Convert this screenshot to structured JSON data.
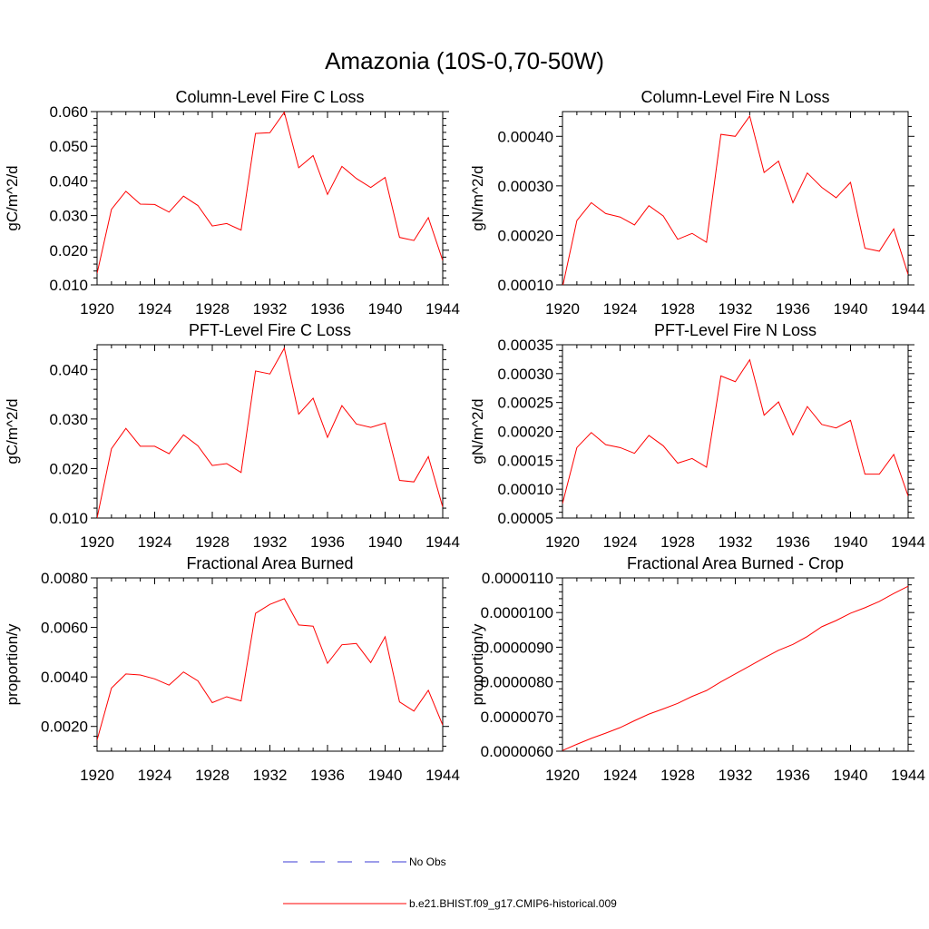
{
  "figure_title": "Amazonia (10S-0,70-50W)",
  "colors": {
    "model": "#ff0000",
    "obs": "#3b3bd6",
    "axis": "#000000",
    "background": "#ffffff"
  },
  "legend": {
    "obs_label": "No Obs",
    "model_label": "b.e21.BHIST.f09_g17.CMIP6-historical.009"
  },
  "chart_data": [
    {
      "type": "line",
      "title": "Column-Level Fire C Loss",
      "xlabel": "",
      "ylabel": "gC/m^2/d",
      "xlim": [
        1920,
        1944
      ],
      "ylim": [
        0.01,
        0.06
      ],
      "xticks": [
        1920,
        1924,
        1928,
        1932,
        1936,
        1940,
        1944
      ],
      "xtick_labels": [
        "1920",
        "1924",
        "1928",
        "1932",
        "1936",
        "1940",
        "1944"
      ],
      "yticks": [
        0.01,
        0.02,
        0.03,
        0.04,
        0.05,
        0.06
      ],
      "ytick_labels": [
        "0.010",
        "0.020",
        "0.030",
        "0.040",
        "0.050",
        "0.060"
      ],
      "x": [
        1920,
        1921,
        1922,
        1923,
        1924,
        1925,
        1926,
        1927,
        1928,
        1929,
        1930,
        1931,
        1932,
        1933,
        1934,
        1935,
        1936,
        1937,
        1938,
        1939,
        1940,
        1941,
        1942,
        1943,
        1944
      ],
      "series": [
        {
          "name": "b.e21.BHIST.f09_g17.CMIP6-historical.009",
          "values": [
            0.0133,
            0.0318,
            0.037,
            0.0333,
            0.0332,
            0.031,
            0.0356,
            0.0329,
            0.027,
            0.0277,
            0.0258,
            0.0537,
            0.0539,
            0.0598,
            0.0438,
            0.0473,
            0.0361,
            0.0442,
            0.0407,
            0.0381,
            0.041,
            0.0237,
            0.0228,
            0.0294,
            0.017
          ]
        }
      ]
    },
    {
      "type": "line",
      "title": "Column-Level Fire N Loss",
      "xlabel": "",
      "ylabel": "gN/m^2/d",
      "xlim": [
        1920,
        1944
      ],
      "ylim": [
        0.0001,
        0.00045
      ],
      "xticks": [
        1920,
        1924,
        1928,
        1932,
        1936,
        1940,
        1944
      ],
      "xtick_labels": [
        "1920",
        "1924",
        "1928",
        "1932",
        "1936",
        "1940",
        "1944"
      ],
      "yticks": [
        0.0001,
        0.0002,
        0.0003,
        0.0004
      ],
      "ytick_labels": [
        "0.00010",
        "0.00020",
        "0.00030",
        "0.00040"
      ],
      "x": [
        1920,
        1921,
        1922,
        1923,
        1924,
        1925,
        1926,
        1927,
        1928,
        1929,
        1930,
        1931,
        1932,
        1933,
        1934,
        1935,
        1936,
        1937,
        1938,
        1939,
        1940,
        1941,
        1942,
        1943,
        1944
      ],
      "series": [
        {
          "name": "b.e21.BHIST.f09_g17.CMIP6-historical.009",
          "values": [
            9.5e-05,
            0.00023,
            0.000266,
            0.000244,
            0.000237,
            0.000221,
            0.00026,
            0.000239,
            0.000192,
            0.000204,
            0.000186,
            0.000404,
            0.0004,
            0.000441,
            0.000327,
            0.00035,
            0.000266,
            0.000326,
            0.000297,
            0.000276,
            0.000307,
            0.000174,
            0.000168,
            0.000213,
            0.000121
          ]
        }
      ]
    },
    {
      "type": "line",
      "title": "PFT-Level Fire C Loss",
      "xlabel": "",
      "ylabel": "gC/m^2/d",
      "xlim": [
        1920,
        1944
      ],
      "ylim": [
        0.01,
        0.045
      ],
      "xticks": [
        1920,
        1924,
        1928,
        1932,
        1936,
        1940,
        1944
      ],
      "xtick_labels": [
        "1920",
        "1924",
        "1928",
        "1932",
        "1936",
        "1940",
        "1944"
      ],
      "yticks": [
        0.01,
        0.02,
        0.03,
        0.04
      ],
      "ytick_labels": [
        "0.010",
        "0.020",
        "0.030",
        "0.040"
      ],
      "x": [
        1920,
        1921,
        1922,
        1923,
        1924,
        1925,
        1926,
        1927,
        1928,
        1929,
        1930,
        1931,
        1932,
        1933,
        1934,
        1935,
        1936,
        1937,
        1938,
        1939,
        1940,
        1941,
        1942,
        1943,
        1944
      ],
      "series": [
        {
          "name": "b.e21.BHIST.f09_g17.CMIP6-historical.009",
          "values": [
            0.01,
            0.024,
            0.0281,
            0.0245,
            0.0245,
            0.023,
            0.0268,
            0.0246,
            0.0206,
            0.021,
            0.0192,
            0.0397,
            0.0391,
            0.0443,
            0.031,
            0.0342,
            0.0263,
            0.0327,
            0.029,
            0.0283,
            0.0292,
            0.0176,
            0.0173,
            0.0224,
            0.0122
          ]
        }
      ]
    },
    {
      "type": "line",
      "title": "PFT-Level Fire N Loss",
      "xlabel": "",
      "ylabel": "gN/m^2/d",
      "xlim": [
        1920,
        1944
      ],
      "ylim": [
        5e-05,
        0.00035
      ],
      "xticks": [
        1920,
        1924,
        1928,
        1932,
        1936,
        1940,
        1944
      ],
      "xtick_labels": [
        "1920",
        "1924",
        "1928",
        "1932",
        "1936",
        "1940",
        "1944"
      ],
      "yticks": [
        5e-05,
        0.0001,
        0.00015,
        0.0002,
        0.00025,
        0.0003,
        0.00035
      ],
      "ytick_labels": [
        "0.00005",
        "0.00010",
        "0.00015",
        "0.00020",
        "0.00025",
        "0.00030",
        "0.00035"
      ],
      "x": [
        1920,
        1921,
        1922,
        1923,
        1924,
        1925,
        1926,
        1927,
        1928,
        1929,
        1930,
        1931,
        1932,
        1933,
        1934,
        1935,
        1936,
        1937,
        1938,
        1939,
        1940,
        1941,
        1942,
        1943,
        1944
      ],
      "series": [
        {
          "name": "b.e21.BHIST.f09_g17.CMIP6-historical.009",
          "values": [
            7.5e-05,
            0.000172,
            0.000198,
            0.000177,
            0.000172,
            0.000162,
            0.000193,
            0.000175,
            0.000145,
            0.000153,
            0.000138,
            0.000296,
            0.000286,
            0.000324,
            0.000228,
            0.000251,
            0.000194,
            0.000243,
            0.000212,
            0.000206,
            0.000219,
            0.000126,
            0.000126,
            0.00016,
            8.8e-05
          ]
        }
      ]
    },
    {
      "type": "line",
      "title": "Fractional Area Burned",
      "xlabel": "",
      "ylabel": "proportion/y",
      "xlim": [
        1920,
        1944
      ],
      "ylim": [
        0.001,
        0.008
      ],
      "xticks": [
        1920,
        1924,
        1928,
        1932,
        1936,
        1940,
        1944
      ],
      "xtick_labels": [
        "1920",
        "1924",
        "1928",
        "1932",
        "1936",
        "1940",
        "1944"
      ],
      "yticks": [
        0.002,
        0.004,
        0.006,
        0.008
      ],
      "ytick_labels": [
        "0.0020",
        "0.0040",
        "0.0060",
        "0.0080"
      ],
      "x": [
        1920,
        1921,
        1922,
        1923,
        1924,
        1925,
        1926,
        1927,
        1928,
        1929,
        1930,
        1931,
        1932,
        1933,
        1934,
        1935,
        1936,
        1937,
        1938,
        1939,
        1940,
        1941,
        1942,
        1943,
        1944
      ],
      "series": [
        {
          "name": "b.e21.BHIST.f09_g17.CMIP6-historical.009",
          "values": [
            0.00145,
            0.00355,
            0.00412,
            0.00408,
            0.00392,
            0.00367,
            0.0042,
            0.00384,
            0.00296,
            0.0032,
            0.00303,
            0.00657,
            0.00693,
            0.00716,
            0.0061,
            0.00605,
            0.00455,
            0.0053,
            0.00535,
            0.00458,
            0.00562,
            0.00299,
            0.00262,
            0.00346,
            0.00205
          ]
        }
      ]
    },
    {
      "type": "line",
      "title": "Fractional Area Burned - Crop",
      "xlabel": "",
      "ylabel": "proportion/y",
      "xlim": [
        1920,
        1944
      ],
      "ylim": [
        6e-06,
        1.1e-05
      ],
      "xticks": [
        1920,
        1924,
        1928,
        1932,
        1936,
        1940,
        1944
      ],
      "xtick_labels": [
        "1920",
        "1924",
        "1928",
        "1932",
        "1936",
        "1940",
        "1944"
      ],
      "yticks": [
        6e-06,
        7e-06,
        8e-06,
        9e-06,
        1e-05,
        1.1e-05
      ],
      "ytick_labels": [
        "0.0000060",
        "0.0000070",
        "0.0000080",
        "0.0000090",
        "0.0000100",
        "0.0000110"
      ],
      "x": [
        1920,
        1921,
        1922,
        1923,
        1924,
        1925,
        1926,
        1927,
        1928,
        1929,
        1930,
        1931,
        1932,
        1933,
        1934,
        1935,
        1936,
        1937,
        1938,
        1939,
        1940,
        1941,
        1942,
        1943,
        1944
      ],
      "series": [
        {
          "name": "b.e21.BHIST.f09_g17.CMIP6-historical.009",
          "values": [
            6.02e-06,
            6.2e-06,
            6.37e-06,
            6.52e-06,
            6.68e-06,
            6.88e-06,
            7.07e-06,
            7.22e-06,
            7.38e-06,
            7.58e-06,
            7.75e-06,
            8e-06,
            8.23e-06,
            8.46e-06,
            8.69e-06,
            8.91e-06,
            9.08e-06,
            9.31e-06,
            9.59e-06,
            9.77e-06,
            9.98e-06,
            1.014e-05,
            1.032e-05,
            1.055e-05,
            1.076e-05
          ]
        }
      ]
    }
  ]
}
